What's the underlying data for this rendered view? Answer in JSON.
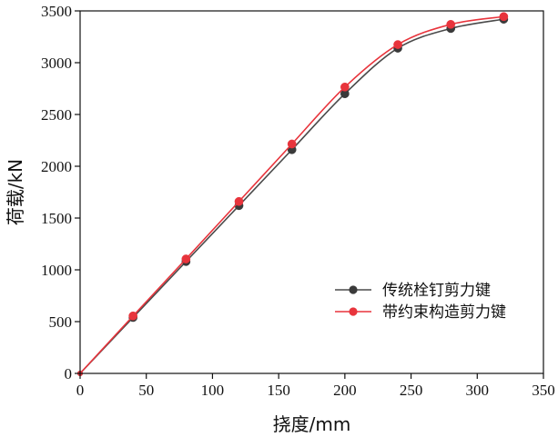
{
  "chart_data": {
    "type": "line",
    "title": "",
    "xlabel": "挠度/mm",
    "ylabel": "荷载/kN",
    "xlim": [
      0,
      350
    ],
    "ylim": [
      0,
      3500
    ],
    "xticks": [
      0,
      50,
      100,
      150,
      200,
      250,
      300,
      350
    ],
    "yticks": [
      0,
      500,
      1000,
      1500,
      2000,
      2500,
      3000,
      3500
    ],
    "grid": false,
    "legend_position": "bottom-right",
    "series": [
      {
        "name": "传统栓钉剪力键",
        "color": "#4a4a4a",
        "marker_color": "#3a3a3a",
        "x": [
          0,
          40,
          80,
          120,
          160,
          200,
          240,
          280,
          320
        ],
        "y": [
          0,
          540,
          1080,
          1620,
          2160,
          2700,
          3140,
          3330,
          3420
        ]
      },
      {
        "name": "带约束构造剪力键",
        "color": "#e8343c",
        "marker_color": "#e8343c",
        "x": [
          0,
          40,
          80,
          120,
          160,
          200,
          240,
          280,
          320
        ],
        "y": [
          0,
          555,
          1105,
          1660,
          2215,
          2765,
          3175,
          3370,
          3445
        ]
      }
    ]
  }
}
